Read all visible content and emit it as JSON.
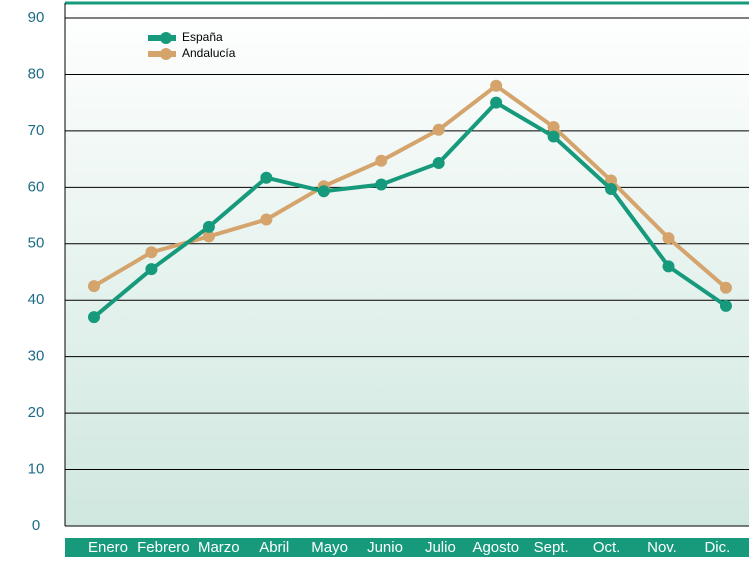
{
  "chart_data": {
    "type": "line",
    "categories": [
      "Enero",
      "Febrero",
      "Marzo",
      "Abril",
      "Mayo",
      "Junio",
      "Julio",
      "Agosto",
      "Sept.",
      "Oct.",
      "Nov.",
      "Dic."
    ],
    "series": [
      {
        "name": "España",
        "color": "#179a7c",
        "values": [
          37,
          45.5,
          53,
          61.7,
          59.3,
          60.5,
          64.3,
          75,
          69,
          59.7,
          46,
          39
        ]
      },
      {
        "name": "Andalucía",
        "color": "#d4a46c",
        "values": [
          42.5,
          48.5,
          51.3,
          54.3,
          60.2,
          64.7,
          70.2,
          78,
          70.7,
          61.2,
          51,
          42.2
        ]
      }
    ],
    "ylim": [
      0,
      90
    ],
    "yticks": [
      0,
      10,
      20,
      30,
      40,
      50,
      60,
      70,
      80,
      90
    ],
    "grid": true
  }
}
